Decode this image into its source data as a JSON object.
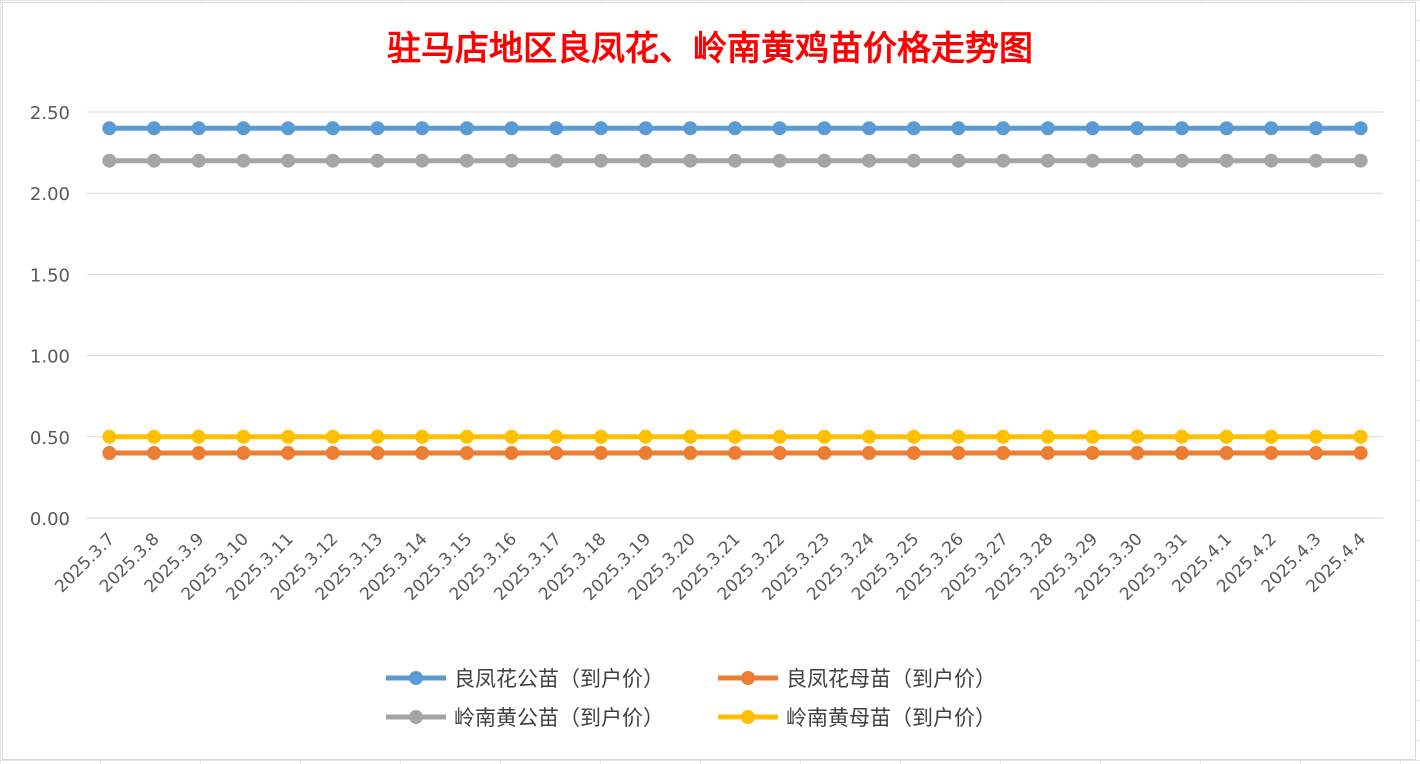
{
  "chart_data": {
    "type": "line",
    "title": "驻马店地区良凤花、岭南黄鸡苗价格走势图",
    "xlabel": "",
    "ylabel": "",
    "ylim": [
      0,
      2.5
    ],
    "yticks": [
      "0.00",
      "0.50",
      "1.00",
      "1.50",
      "2.00",
      "2.50"
    ],
    "grid": true,
    "legend_position": "bottom",
    "categories": [
      "2025.3.7",
      "2025.3.8",
      "2025.3.9",
      "2025.3.10",
      "2025.3.11",
      "2025.3.12",
      "2025.3.13",
      "2025.3.14",
      "2025.3.15",
      "2025.3.16",
      "2025.3.17",
      "2025.3.18",
      "2025.3.19",
      "2025.3.20",
      "2025.3.21",
      "2025.3.22",
      "2025.3.23",
      "2025.3.24",
      "2025.3.25",
      "2025.3.26",
      "2025.3.27",
      "2025.3.28",
      "2025.3.29",
      "2025.3.30",
      "2025.3.31",
      "2025.4.1",
      "2025.4.2",
      "2025.4.3",
      "2025.4.4"
    ],
    "series": [
      {
        "name": "良凤花公苗（到户价）",
        "color": "#5b9bd5",
        "values": [
          2.4,
          2.4,
          2.4,
          2.4,
          2.4,
          2.4,
          2.4,
          2.4,
          2.4,
          2.4,
          2.4,
          2.4,
          2.4,
          2.4,
          2.4,
          2.4,
          2.4,
          2.4,
          2.4,
          2.4,
          2.4,
          2.4,
          2.4,
          2.4,
          2.4,
          2.4,
          2.4,
          2.4,
          2.4
        ]
      },
      {
        "name": "良凤花母苗（到户价）",
        "color": "#ed7d31",
        "values": [
          0.4,
          0.4,
          0.4,
          0.4,
          0.4,
          0.4,
          0.4,
          0.4,
          0.4,
          0.4,
          0.4,
          0.4,
          0.4,
          0.4,
          0.4,
          0.4,
          0.4,
          0.4,
          0.4,
          0.4,
          0.4,
          0.4,
          0.4,
          0.4,
          0.4,
          0.4,
          0.4,
          0.4,
          0.4
        ]
      },
      {
        "name": "岭南黄公苗（到户价）",
        "color": "#a5a5a5",
        "values": [
          2.2,
          2.2,
          2.2,
          2.2,
          2.2,
          2.2,
          2.2,
          2.2,
          2.2,
          2.2,
          2.2,
          2.2,
          2.2,
          2.2,
          2.2,
          2.2,
          2.2,
          2.2,
          2.2,
          2.2,
          2.2,
          2.2,
          2.2,
          2.2,
          2.2,
          2.2,
          2.2,
          2.2,
          2.2
        ]
      },
      {
        "name": "岭南黄母苗（到户价）",
        "color": "#ffc000",
        "values": [
          0.5,
          0.5,
          0.5,
          0.5,
          0.5,
          0.5,
          0.5,
          0.5,
          0.5,
          0.5,
          0.5,
          0.5,
          0.5,
          0.5,
          0.5,
          0.5,
          0.5,
          0.5,
          0.5,
          0.5,
          0.5,
          0.5,
          0.5,
          0.5,
          0.5,
          0.5,
          0.5,
          0.5,
          0.5
        ]
      }
    ]
  }
}
